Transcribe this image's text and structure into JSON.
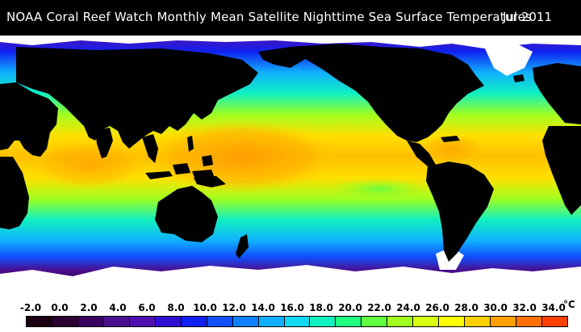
{
  "header": {
    "title": "NOAA Coral Reef Watch Monthly Mean Satellite Nighttime Sea Surface Temperatures",
    "date": "Jul 2011"
  },
  "legend": {
    "unit": "°C",
    "ticks": [
      "-2.0",
      "0.0",
      "2.0",
      "4.0",
      "6.0",
      "8.0",
      "10.0",
      "12.0",
      "14.0",
      "16.0",
      "18.0",
      "20.0",
      "22.0",
      "24.0",
      "26.0",
      "28.0",
      "30.0",
      "32.0",
      "34.0"
    ],
    "colors": [
      "#1a0010",
      "#2a0030",
      "#3a0060",
      "#4a1090",
      "#5010b0",
      "#3010d0",
      "#1020f0",
      "#1050ff",
      "#1080ff",
      "#10b0ff",
      "#10d8f0",
      "#10f0c0",
      "#20ff80",
      "#60ff40",
      "#a0ff20",
      "#d8ff10",
      "#ffff00",
      "#ffd000",
      "#ffa000",
      "#ff7000",
      "#ff4000"
    ]
  },
  "colors": {
    "land": "#000000",
    "ice": "#ffffff",
    "warm_pool": "#ffa000",
    "tropical": "#ffe000",
    "subtropical": "#a0ff20",
    "temperate": "#10f0c0",
    "cool": "#10b0ff",
    "cold": "#1020f0",
    "polar": "#4a1090"
  }
}
